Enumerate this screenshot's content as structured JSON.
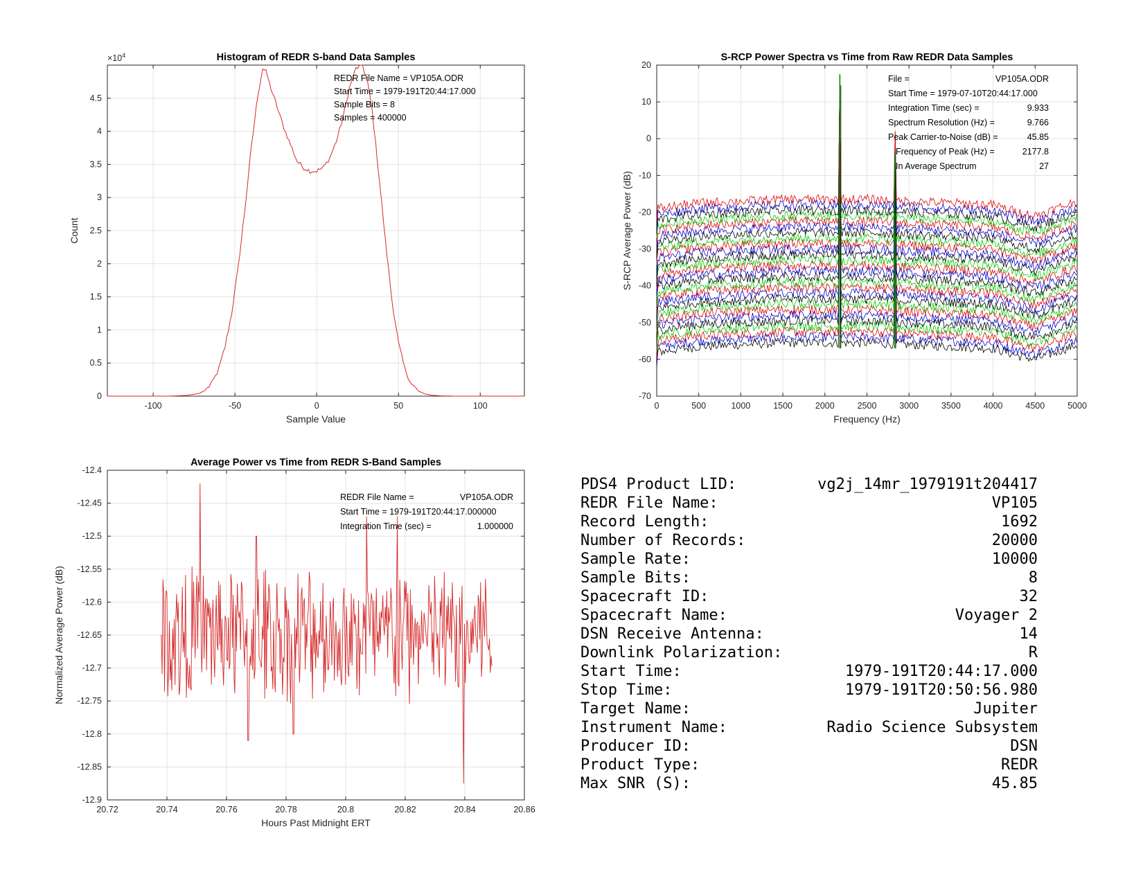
{
  "chart_data": [
    {
      "type": "line",
      "title": "Histogram of REDR S-band Data Samples",
      "xlabel": "Sample Value",
      "ylabel": "Count",
      "xlim": [
        -128,
        127
      ],
      "ylim": [
        0,
        50000
      ],
      "y_exponent_label": "×10",
      "y_exponent_power": "4",
      "xticks": [
        -100,
        -50,
        0,
        50,
        100
      ],
      "yticks": [
        0,
        5000,
        10000,
        15000,
        20000,
        25000,
        30000,
        35000,
        40000,
        45000
      ],
      "ytick_labels": [
        "0",
        "0.5",
        "1",
        "1.5",
        "2",
        "2.5",
        "3",
        "3.5",
        "4",
        "4.5"
      ],
      "grid": true,
      "color": "#d62728",
      "series": [
        {
          "x": [
            -128,
            -90,
            -80,
            -72,
            -68,
            -64,
            -60,
            -56,
            -52,
            -48,
            -44,
            -40,
            -36,
            -33,
            -31,
            -28,
            -24,
            -20,
            -16,
            -12,
            -8,
            -4,
            0,
            4,
            8,
            12,
            16,
            20,
            24,
            28,
            31,
            34,
            38,
            42,
            46,
            50,
            54,
            58,
            62,
            66,
            70,
            75,
            85,
            127
          ],
          "y": [
            0,
            0,
            100,
            400,
            900,
            2000,
            4000,
            7500,
            12500,
            19500,
            28000,
            37500,
            45500,
            49500,
            49000,
            46500,
            43500,
            40500,
            38000,
            35500,
            34500,
            34000,
            34000,
            34500,
            36000,
            38500,
            42000,
            46500,
            49500,
            50000,
            47500,
            43000,
            33500,
            23500,
            14500,
            8000,
            4000,
            1800,
            800,
            350,
            150,
            50,
            0,
            0
          ]
        }
      ],
      "annotations": [
        "REDR File Name = VP105A.ODR",
        "Start Time = 1979-191T20:44:17.000",
        "Sample Bits = 8",
        "Samples = 400000"
      ]
    },
    {
      "type": "line",
      "title": "S-RCP Power Spectra vs Time from Raw REDR Data Samples",
      "xlabel": "Frequency (Hz)",
      "ylabel": "S-RCP Average Power (dB)",
      "xlim": [
        0,
        5000
      ],
      "ylim": [
        -70,
        20
      ],
      "xticks": [
        0,
        500,
        1000,
        1500,
        2000,
        2500,
        3000,
        3500,
        4000,
        4500,
        5000
      ],
      "yticks": [
        -70,
        -60,
        -50,
        -40,
        -30,
        -20,
        -10,
        0,
        10,
        20
      ],
      "grid": true,
      "trace_count": 27,
      "trace_colors": [
        "#000000",
        "#0000cc",
        "#dd0000",
        "#00cc00"
      ],
      "trace_offsets_db": [
        0,
        1.5,
        3,
        4.5,
        6,
        7.5,
        9,
        10.5,
        12,
        13.5,
        15,
        16.5,
        18,
        19.5,
        21,
        22.5,
        24,
        25.5,
        27,
        28.5,
        30,
        31.5,
        33,
        34.5,
        36,
        37.5,
        39
      ],
      "baseline_freq": [
        0,
        500,
        1000,
        1500,
        2000,
        2500,
        3000,
        3500,
        4000,
        4300,
        4500,
        5000
      ],
      "baseline_db": [
        -58,
        -56.5,
        -56,
        -55.5,
        -55.5,
        -55.5,
        -56,
        -56.5,
        -57,
        -59,
        -60,
        -56
      ],
      "peaks": [
        {
          "freq": 2177.8,
          "top_db": 17.5
        },
        {
          "freq": 2830,
          "top_db": -4
        }
      ],
      "annotations": [
        {
          "label": "File =",
          "value": "VP105A.ODR"
        },
        {
          "label": "Start Time = 1979-07-10T20:44:17.000",
          "value": ""
        },
        {
          "label": "Integration Time (sec) =",
          "value": "9.933"
        },
        {
          "label": "Spectrum Resolution (Hz) =",
          "value": "9.766"
        },
        {
          "label": "Peak Carrier-to-Noise (dB) =",
          "value": "45.85"
        },
        {
          "label": "Frequency of Peak (Hz) =",
          "value": "2177.8"
        },
        {
          "label": "In Average Spectrum",
          "value": "27"
        }
      ]
    },
    {
      "type": "line",
      "title": "Average Power vs Time from REDR S-Band Samples",
      "xlabel": "Hours Past Midnight ERT",
      "ylabel": "Normalized Average Power (dB)",
      "xlim": [
        20.72,
        20.86
      ],
      "ylim": [
        -12.9,
        -12.4
      ],
      "xticks": [
        20.72,
        20.74,
        20.76,
        20.78,
        20.8,
        20.82,
        20.84,
        20.86
      ],
      "yticks": [
        -12.9,
        -12.85,
        -12.8,
        -12.75,
        -12.7,
        -12.65,
        -12.6,
        -12.55,
        -12.5,
        -12.45,
        -12.4
      ],
      "grid": true,
      "color": "#d62728",
      "x_start": 20.7381,
      "x_end": 20.8491,
      "sample_count": 410,
      "mean_db": -12.65,
      "extremes": [
        {
          "x": 20.7512,
          "y": -12.42
        },
        {
          "x": 20.7673,
          "y": -12.81
        },
        {
          "x": 20.77,
          "y": -12.5
        },
        {
          "x": 20.7825,
          "y": -12.8
        },
        {
          "x": 20.807,
          "y": -12.47
        },
        {
          "x": 20.8173,
          "y": -12.47
        },
        {
          "x": 20.8395,
          "y": -12.875
        },
        {
          "x": 20.8453,
          "y": -12.57
        }
      ],
      "annotations": [
        {
          "label": "REDR File Name =",
          "value": "VP105A.ODR"
        },
        {
          "label": "Start Time = 1979-191T20:44:17.000000",
          "value": ""
        },
        {
          "label": "Integration Time (sec) =",
          "value": "1.000000"
        }
      ]
    }
  ],
  "info_table": [
    {
      "label": "PDS4 Product LID:",
      "value": "vg2j_14mr_1979191t204417"
    },
    {
      "label": "REDR File Name:",
      "value": "VP105"
    },
    {
      "label": "Record Length:",
      "value": "1692"
    },
    {
      "label": "Number of Records:",
      "value": "20000"
    },
    {
      "label": "Sample Rate:",
      "value": "10000"
    },
    {
      "label": "Sample Bits:",
      "value": "8"
    },
    {
      "label": "Spacecraft ID:",
      "value": "32"
    },
    {
      "label": "Spacecraft Name:",
      "value": "Voyager 2"
    },
    {
      "label": "DSN Receive Antenna:",
      "value": "14"
    },
    {
      "label": "Downlink Polarization:",
      "value": "R"
    },
    {
      "label": "Start Time:",
      "value": "1979-191T20:44:17.000"
    },
    {
      "label": "Stop Time:",
      "value": "1979-191T20:50:56.980"
    },
    {
      "label": "Target Name:",
      "value": "Jupiter"
    },
    {
      "label": "Instrument Name:",
      "value": "Radio Science Subsystem"
    },
    {
      "label": "Producer ID:",
      "value": "DSN"
    },
    {
      "label": "Product Type:",
      "value": "REDR"
    },
    {
      "label": "Max SNR (S):",
      "value": "45.85"
    }
  ]
}
